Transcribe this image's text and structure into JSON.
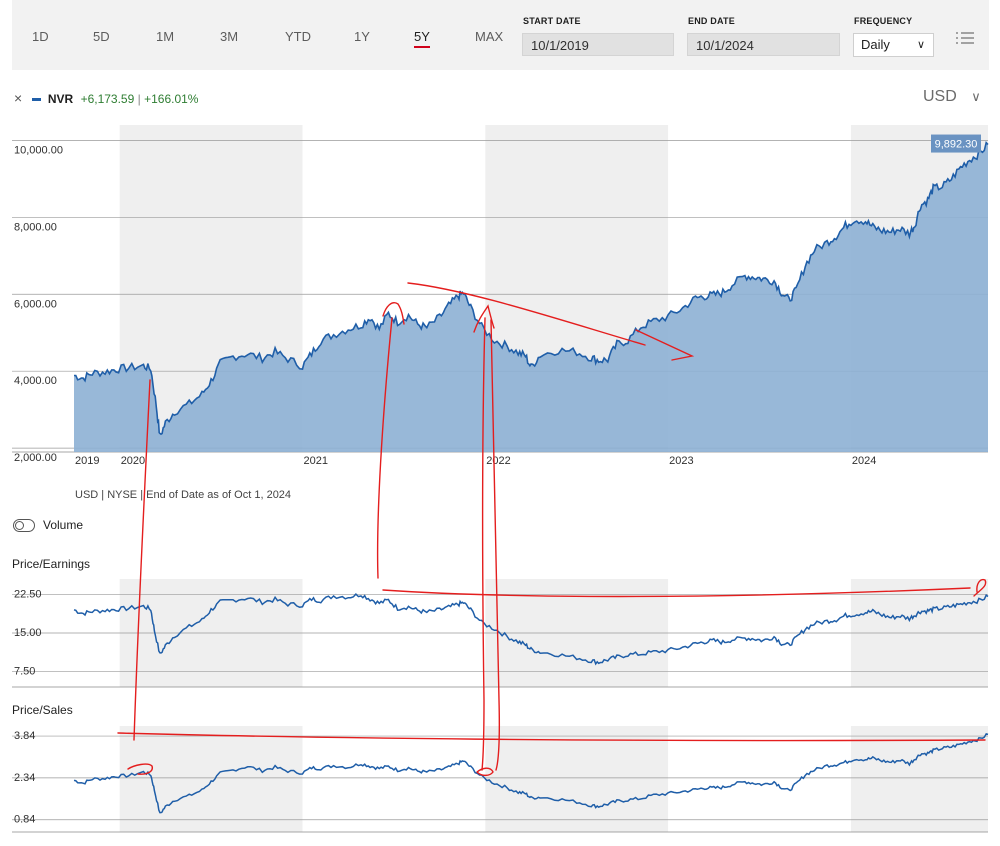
{
  "toolbar": {
    "ranges": [
      "1D",
      "5D",
      "1M",
      "3M",
      "YTD",
      "1Y",
      "5Y",
      "MAX"
    ],
    "active_range": "5Y",
    "start_date_label": "START DATE",
    "start_date": "10/1/2019",
    "end_date_label": "END DATE",
    "end_date": "10/1/2024",
    "frequency_label": "FREQUENCY",
    "frequency": "Daily"
  },
  "legend": {
    "close_symbol": "×",
    "ticker": "NVR",
    "change": "+6,173.59",
    "separator": "|",
    "pct_change": "+166.01%",
    "currency": "USD"
  },
  "colors": {
    "series": "#1f5ea8",
    "area_fill": "#8db0d4",
    "positive": "#2e7d32",
    "annotation": "#e41e1e",
    "shade": "#efefef",
    "active_underline": "#d0021b"
  },
  "footnote": "USD | NYSE | End of Date as of Oct 1, 2024",
  "volume_label": "Volume",
  "chart_data": [
    {
      "type": "area",
      "name": "price",
      "x_ticks": [
        "2019",
        "2020",
        "2021",
        "2022",
        "2023",
        "2024"
      ],
      "y_ticks": [
        "10,000.00",
        "8,000.00",
        "6,000.00",
        "4,000.00",
        "2,000.00"
      ],
      "ylim": [
        1900,
        10400
      ],
      "xlim": [
        2019.75,
        2024.75
      ],
      "last_value_label": "9,892.30",
      "points": [
        [
          2019.75,
          3890
        ],
        [
          2019.8,
          3820
        ],
        [
          2019.85,
          3950
        ],
        [
          2019.92,
          3980
        ],
        [
          2019.98,
          4050
        ],
        [
          2020.05,
          4090
        ],
        [
          2020.13,
          4140
        ],
        [
          2020.17,
          4060
        ],
        [
          2020.2,
          3100
        ],
        [
          2020.22,
          2300
        ],
        [
          2020.25,
          2650
        ],
        [
          2020.3,
          2950
        ],
        [
          2020.38,
          3150
        ],
        [
          2020.45,
          3400
        ],
        [
          2020.5,
          3750
        ],
        [
          2020.55,
          4200
        ],
        [
          2020.62,
          4380
        ],
        [
          2020.7,
          4450
        ],
        [
          2020.78,
          4340
        ],
        [
          2020.85,
          4500
        ],
        [
          2020.92,
          4320
        ],
        [
          2021.0,
          4130
        ],
        [
          2021.05,
          4460
        ],
        [
          2021.1,
          4800
        ],
        [
          2021.17,
          4950
        ],
        [
          2021.25,
          5100
        ],
        [
          2021.32,
          5200
        ],
        [
          2021.37,
          5400
        ],
        [
          2021.42,
          5100
        ],
        [
          2021.47,
          5500
        ],
        [
          2021.52,
          5280
        ],
        [
          2021.58,
          5450
        ],
        [
          2021.63,
          5220
        ],
        [
          2021.68,
          5130
        ],
        [
          2021.75,
          5400
        ],
        [
          2021.8,
          5700
        ],
        [
          2021.85,
          5950
        ],
        [
          2021.88,
          6030
        ],
        [
          2021.92,
          5650
        ],
        [
          2021.98,
          5150
        ],
        [
          2022.05,
          4800
        ],
        [
          2022.12,
          4650
        ],
        [
          2022.18,
          4480
        ],
        [
          2022.22,
          4400
        ],
        [
          2022.25,
          4100
        ],
        [
          2022.3,
          4420
        ],
        [
          2022.4,
          4550
        ],
        [
          2022.5,
          4500
        ],
        [
          2022.58,
          4350
        ],
        [
          2022.62,
          4280
        ],
        [
          2022.67,
          4300
        ],
        [
          2022.72,
          4700
        ],
        [
          2022.78,
          4800
        ],
        [
          2022.85,
          5150
        ],
        [
          2022.92,
          5300
        ],
        [
          2023.0,
          5420
        ],
        [
          2023.08,
          5640
        ],
        [
          2023.15,
          5900
        ],
        [
          2023.2,
          5950
        ],
        [
          2023.25,
          5980
        ],
        [
          2023.3,
          6050
        ],
        [
          2023.35,
          6250
        ],
        [
          2023.42,
          6480
        ],
        [
          2023.47,
          6450
        ],
        [
          2023.52,
          6400
        ],
        [
          2023.58,
          6350
        ],
        [
          2023.62,
          6050
        ],
        [
          2023.66,
          5850
        ],
        [
          2023.7,
          6100
        ],
        [
          2023.75,
          6750
        ],
        [
          2023.8,
          7150
        ],
        [
          2023.87,
          7350
        ],
        [
          2023.92,
          7520
        ],
        [
          2023.97,
          7780
        ],
        [
          2024.02,
          7950
        ],
        [
          2024.08,
          7900
        ],
        [
          2024.12,
          7750
        ],
        [
          2024.17,
          7650
        ],
        [
          2024.22,
          7620
        ],
        [
          2024.27,
          7700
        ],
        [
          2024.32,
          7580
        ],
        [
          2024.35,
          7800
        ],
        [
          2024.38,
          8300
        ],
        [
          2024.42,
          8450
        ],
        [
          2024.45,
          8750
        ],
        [
          2024.5,
          8800
        ],
        [
          2024.55,
          9000
        ],
        [
          2024.6,
          9300
        ],
        [
          2024.65,
          9500
        ],
        [
          2024.7,
          9650
        ],
        [
          2024.75,
          9892
        ]
      ]
    },
    {
      "type": "line",
      "name": "price-earnings",
      "title": "Price/Earnings",
      "y_ticks": [
        "22.50",
        "15.00",
        "7.50"
      ],
      "ylim": [
        4.5,
        25.5
      ],
      "xlim": [
        2019.75,
        2024.75
      ],
      "points": [
        [
          2019.75,
          19.5
        ],
        [
          2019.8,
          18.8
        ],
        [
          2019.85,
          19.2
        ],
        [
          2019.92,
          19.4
        ],
        [
          2019.98,
          19.6
        ],
        [
          2020.05,
          19.8
        ],
        [
          2020.13,
          20.2
        ],
        [
          2020.17,
          19.6
        ],
        [
          2020.19,
          15.5
        ],
        [
          2020.22,
          10.8
        ],
        [
          2020.25,
          12.5
        ],
        [
          2020.3,
          14.5
        ],
        [
          2020.38,
          16.2
        ],
        [
          2020.45,
          17.5
        ],
        [
          2020.5,
          19.5
        ],
        [
          2020.55,
          21.0
        ],
        [
          2020.62,
          21.4
        ],
        [
          2020.7,
          21.8
        ],
        [
          2020.78,
          21.0
        ],
        [
          2020.85,
          21.5
        ],
        [
          2020.92,
          20.6
        ],
        [
          2021.0,
          20.4
        ],
        [
          2021.05,
          21.6
        ],
        [
          2021.1,
          21.3
        ],
        [
          2021.17,
          22.2
        ],
        [
          2021.25,
          22.0
        ],
        [
          2021.32,
          22.5
        ],
        [
          2021.37,
          21.6
        ],
        [
          2021.42,
          20.8
        ],
        [
          2021.47,
          21.4
        ],
        [
          2021.52,
          19.8
        ],
        [
          2021.58,
          20.1
        ],
        [
          2021.63,
          19.4
        ],
        [
          2021.68,
          19.0
        ],
        [
          2021.75,
          19.5
        ],
        [
          2021.8,
          20.0
        ],
        [
          2021.85,
          20.6
        ],
        [
          2021.88,
          20.9
        ],
        [
          2021.92,
          19.5
        ],
        [
          2021.98,
          17.0
        ],
        [
          2022.05,
          15.8
        ],
        [
          2022.12,
          14.3
        ],
        [
          2022.18,
          13.3
        ],
        [
          2022.22,
          12.7
        ],
        [
          2022.25,
          11.8
        ],
        [
          2022.3,
          11.3
        ],
        [
          2022.4,
          10.8
        ],
        [
          2022.5,
          10.2
        ],
        [
          2022.58,
          9.6
        ],
        [
          2022.62,
          9.3
        ],
        [
          2022.67,
          9.8
        ],
        [
          2022.72,
          10.3
        ],
        [
          2022.78,
          10.8
        ],
        [
          2022.85,
          10.9
        ],
        [
          2022.92,
          11.3
        ],
        [
          2023.0,
          11.6
        ],
        [
          2023.08,
          12.2
        ],
        [
          2023.15,
          12.9
        ],
        [
          2023.2,
          13.3
        ],
        [
          2023.25,
          13.5
        ],
        [
          2023.3,
          13.2
        ],
        [
          2023.35,
          13.7
        ],
        [
          2023.42,
          14.0
        ],
        [
          2023.47,
          13.9
        ],
        [
          2023.52,
          13.5
        ],
        [
          2023.58,
          14.3
        ],
        [
          2023.62,
          13.0
        ],
        [
          2023.66,
          12.6
        ],
        [
          2023.7,
          14.0
        ],
        [
          2023.75,
          15.8
        ],
        [
          2023.8,
          16.8
        ],
        [
          2023.87,
          17.3
        ],
        [
          2023.92,
          17.6
        ],
        [
          2023.97,
          18.4
        ],
        [
          2024.02,
          18.6
        ],
        [
          2024.08,
          19.0
        ],
        [
          2024.12,
          19.2
        ],
        [
          2024.17,
          18.5
        ],
        [
          2024.22,
          18.0
        ],
        [
          2024.27,
          18.3
        ],
        [
          2024.32,
          17.8
        ],
        [
          2024.35,
          18.5
        ],
        [
          2024.38,
          19.2
        ],
        [
          2024.42,
          19.3
        ],
        [
          2024.45,
          19.6
        ],
        [
          2024.5,
          19.8
        ],
        [
          2024.55,
          20.2
        ],
        [
          2024.6,
          20.6
        ],
        [
          2024.65,
          21.0
        ],
        [
          2024.7,
          21.3
        ],
        [
          2024.75,
          22.1
        ]
      ]
    },
    {
      "type": "line",
      "name": "price-sales",
      "title": "Price/Sales",
      "y_ticks": [
        "3.84",
        "2.34",
        "0.84"
      ],
      "ylim": [
        0.4,
        4.2
      ],
      "xlim": [
        2019.75,
        2024.75
      ],
      "points": [
        [
          2019.75,
          2.25
        ],
        [
          2019.8,
          2.15
        ],
        [
          2019.85,
          2.3
        ],
        [
          2019.92,
          2.32
        ],
        [
          2019.98,
          2.4
        ],
        [
          2020.05,
          2.42
        ],
        [
          2020.13,
          2.55
        ],
        [
          2020.17,
          2.45
        ],
        [
          2020.19,
          1.9
        ],
        [
          2020.22,
          1.05
        ],
        [
          2020.25,
          1.3
        ],
        [
          2020.3,
          1.55
        ],
        [
          2020.38,
          1.7
        ],
        [
          2020.45,
          1.9
        ],
        [
          2020.5,
          2.2
        ],
        [
          2020.55,
          2.5
        ],
        [
          2020.62,
          2.62
        ],
        [
          2020.7,
          2.75
        ],
        [
          2020.78,
          2.6
        ],
        [
          2020.85,
          2.72
        ],
        [
          2020.92,
          2.58
        ],
        [
          2021.0,
          2.52
        ],
        [
          2021.05,
          2.7
        ],
        [
          2021.1,
          2.68
        ],
        [
          2021.17,
          2.78
        ],
        [
          2021.25,
          2.72
        ],
        [
          2021.32,
          2.85
        ],
        [
          2021.37,
          2.76
        ],
        [
          2021.42,
          2.68
        ],
        [
          2021.47,
          2.75
        ],
        [
          2021.52,
          2.62
        ],
        [
          2021.58,
          2.7
        ],
        [
          2021.63,
          2.58
        ],
        [
          2021.68,
          2.55
        ],
        [
          2021.75,
          2.62
        ],
        [
          2021.8,
          2.72
        ],
        [
          2021.85,
          2.85
        ],
        [
          2021.88,
          2.95
        ],
        [
          2021.92,
          2.72
        ],
        [
          2021.98,
          2.38
        ],
        [
          2022.05,
          2.15
        ],
        [
          2022.12,
          1.98
        ],
        [
          2022.18,
          1.82
        ],
        [
          2022.22,
          1.78
        ],
        [
          2022.25,
          1.62
        ],
        [
          2022.3,
          1.65
        ],
        [
          2022.4,
          1.58
        ],
        [
          2022.5,
          1.48
        ],
        [
          2022.58,
          1.35
        ],
        [
          2022.62,
          1.32
        ],
        [
          2022.67,
          1.4
        ],
        [
          2022.72,
          1.5
        ],
        [
          2022.78,
          1.55
        ],
        [
          2022.85,
          1.6
        ],
        [
          2022.92,
          1.72
        ],
        [
          2023.0,
          1.78
        ],
        [
          2023.08,
          1.85
        ],
        [
          2023.15,
          1.92
        ],
        [
          2023.2,
          1.98
        ],
        [
          2023.25,
          1.98
        ],
        [
          2023.3,
          2.0
        ],
        [
          2023.35,
          2.1
        ],
        [
          2023.42,
          2.2
        ],
        [
          2023.47,
          2.15
        ],
        [
          2023.52,
          2.1
        ],
        [
          2023.58,
          2.2
        ],
        [
          2023.62,
          2.0
        ],
        [
          2023.66,
          1.88
        ],
        [
          2023.7,
          2.12
        ],
        [
          2023.75,
          2.45
        ],
        [
          2023.8,
          2.62
        ],
        [
          2023.87,
          2.78
        ],
        [
          2023.92,
          2.82
        ],
        [
          2023.97,
          2.9
        ],
        [
          2024.02,
          3.02
        ],
        [
          2024.08,
          3.0
        ],
        [
          2024.12,
          3.05
        ],
        [
          2024.17,
          2.95
        ],
        [
          2024.22,
          2.9
        ],
        [
          2024.27,
          2.98
        ],
        [
          2024.32,
          2.85
        ],
        [
          2024.35,
          3.02
        ],
        [
          2024.38,
          3.2
        ],
        [
          2024.42,
          3.22
        ],
        [
          2024.45,
          3.32
        ],
        [
          2024.5,
          3.4
        ],
        [
          2024.55,
          3.45
        ],
        [
          2024.6,
          3.55
        ],
        [
          2024.65,
          3.65
        ],
        [
          2024.7,
          3.72
        ],
        [
          2024.75,
          3.9
        ]
      ]
    }
  ]
}
